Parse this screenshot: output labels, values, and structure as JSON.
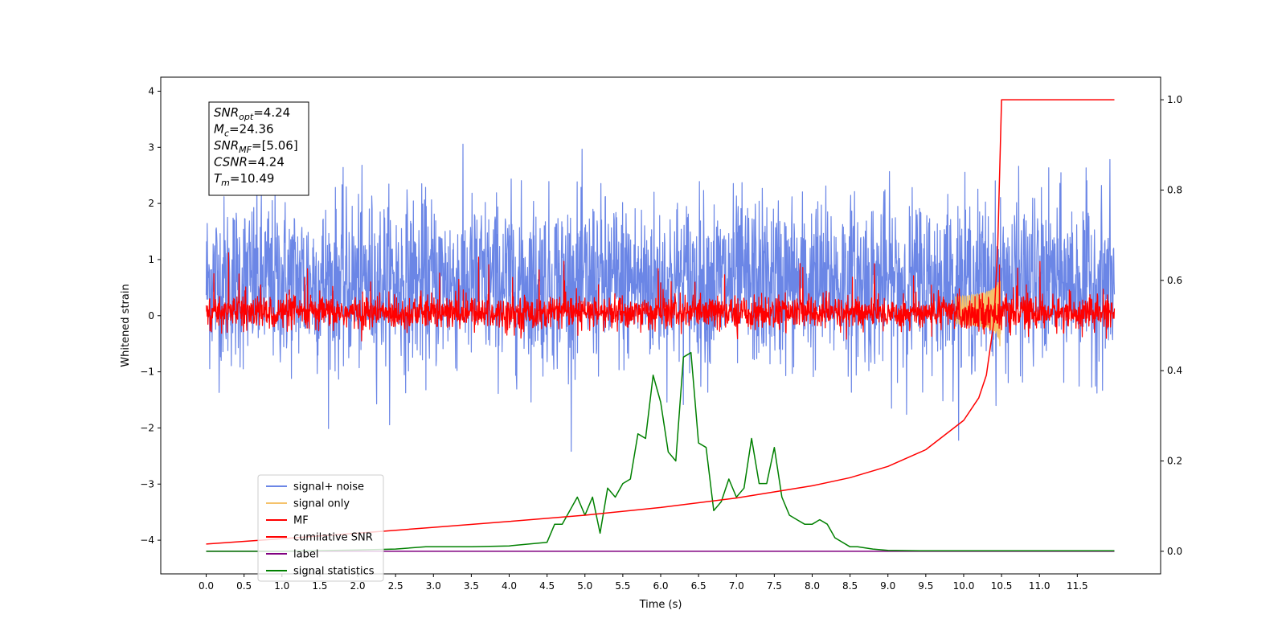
{
  "chart_data": {
    "type": "line",
    "xlabel": "Time (s)",
    "ylabel": "Whitened strain",
    "xlim": [
      -0.6,
      12.6
    ],
    "ylim": [
      -4.6,
      4.25
    ],
    "y2lim": [
      -0.05,
      1.05
    ],
    "x_ticks": [
      "0.0",
      "0.5",
      "1.0",
      "1.5",
      "2.0",
      "2.5",
      "3.0",
      "3.5",
      "4.0",
      "4.5",
      "5.0",
      "5.5",
      "6.0",
      "6.5",
      "7.0",
      "7.5",
      "8.0",
      "8.5",
      "9.0",
      "9.5",
      "10.0",
      "10.5",
      "11.0",
      "11.5"
    ],
    "y_ticks": [
      "4",
      "3",
      "2",
      "1",
      "0",
      "−1",
      "−2",
      "−3",
      "−4"
    ],
    "y2_ticks": [
      "1.0",
      "0.8",
      "0.6",
      "0.4",
      "0.2",
      "0.0"
    ],
    "legend_position": "lower-left",
    "info_box": [
      {
        "base": "SNR",
        "sub": "opt",
        "value": "=4.24"
      },
      {
        "base": "M",
        "sub": "c",
        "value": "=24.36"
      },
      {
        "base": "SNR",
        "sub": "MF",
        "value": "=[5.06]"
      },
      {
        "base": "CSNR",
        "sub": "",
        "value": "=4.24"
      },
      {
        "base": "T",
        "sub": "m",
        "value": "=10.49"
      }
    ],
    "series": [
      {
        "name": "signal+ noise",
        "color": "#6b86e6",
        "axis": "left",
        "kind": "noise",
        "center": 0.6,
        "std": 0.75,
        "t_start": 0.0,
        "t_end": 11.99
      },
      {
        "name": "signal only",
        "color": "#f5c26b",
        "axis": "left",
        "kind": "chirp",
        "t_merge": 10.49,
        "peak": 0.85
      },
      {
        "name": "MF",
        "color": "#ff0000",
        "axis": "left",
        "kind": "noise",
        "center": 0.05,
        "std": 0.15,
        "t_start": 0.0,
        "t_end": 11.99
      },
      {
        "name": "cumilative SNR",
        "color": "#ff0000",
        "axis": "right",
        "x": [
          0.0,
          1.0,
          2.0,
          3.0,
          4.0,
          5.0,
          6.0,
          7.0,
          8.0,
          8.5,
          9.0,
          9.5,
          10.0,
          10.2,
          10.3,
          10.4,
          10.45,
          10.5,
          11.99
        ],
        "y": [
          0.016,
          0.028,
          0.04,
          0.053,
          0.066,
          0.08,
          0.097,
          0.118,
          0.145,
          0.163,
          0.188,
          0.225,
          0.29,
          0.34,
          0.39,
          0.51,
          0.68,
          1.0,
          1.0
        ]
      },
      {
        "name": "label",
        "color": "#800080",
        "axis": "right",
        "x": [
          0.0,
          11.99
        ],
        "y": [
          0.0,
          0.0
        ]
      },
      {
        "name": "signal statistics",
        "color": "#008000",
        "axis": "right",
        "x": [
          0.0,
          1.0,
          2.0,
          2.5,
          2.9,
          3.5,
          4.0,
          4.5,
          4.6,
          4.7,
          4.9,
          5.0,
          5.1,
          5.2,
          5.3,
          5.4,
          5.5,
          5.6,
          5.7,
          5.8,
          5.9,
          6.0,
          6.1,
          6.2,
          6.3,
          6.4,
          6.5,
          6.6,
          6.7,
          6.8,
          6.9,
          7.0,
          7.1,
          7.2,
          7.3,
          7.4,
          7.5,
          7.6,
          7.7,
          7.8,
          7.9,
          8.0,
          8.1,
          8.2,
          8.3,
          8.5,
          8.6,
          8.8,
          9.0,
          9.5,
          10.0,
          11.0,
          11.99
        ],
        "y": [
          0.0,
          0.0,
          0.003,
          0.005,
          0.01,
          0.01,
          0.012,
          0.02,
          0.06,
          0.06,
          0.12,
          0.08,
          0.12,
          0.04,
          0.14,
          0.12,
          0.15,
          0.16,
          0.26,
          0.25,
          0.39,
          0.33,
          0.22,
          0.2,
          0.43,
          0.44,
          0.24,
          0.23,
          0.09,
          0.11,
          0.16,
          0.12,
          0.14,
          0.25,
          0.15,
          0.15,
          0.23,
          0.12,
          0.08,
          0.07,
          0.06,
          0.06,
          0.07,
          0.06,
          0.03,
          0.01,
          0.01,
          0.005,
          0.002,
          0.001,
          0.001,
          0.001,
          0.001
        ]
      }
    ]
  }
}
